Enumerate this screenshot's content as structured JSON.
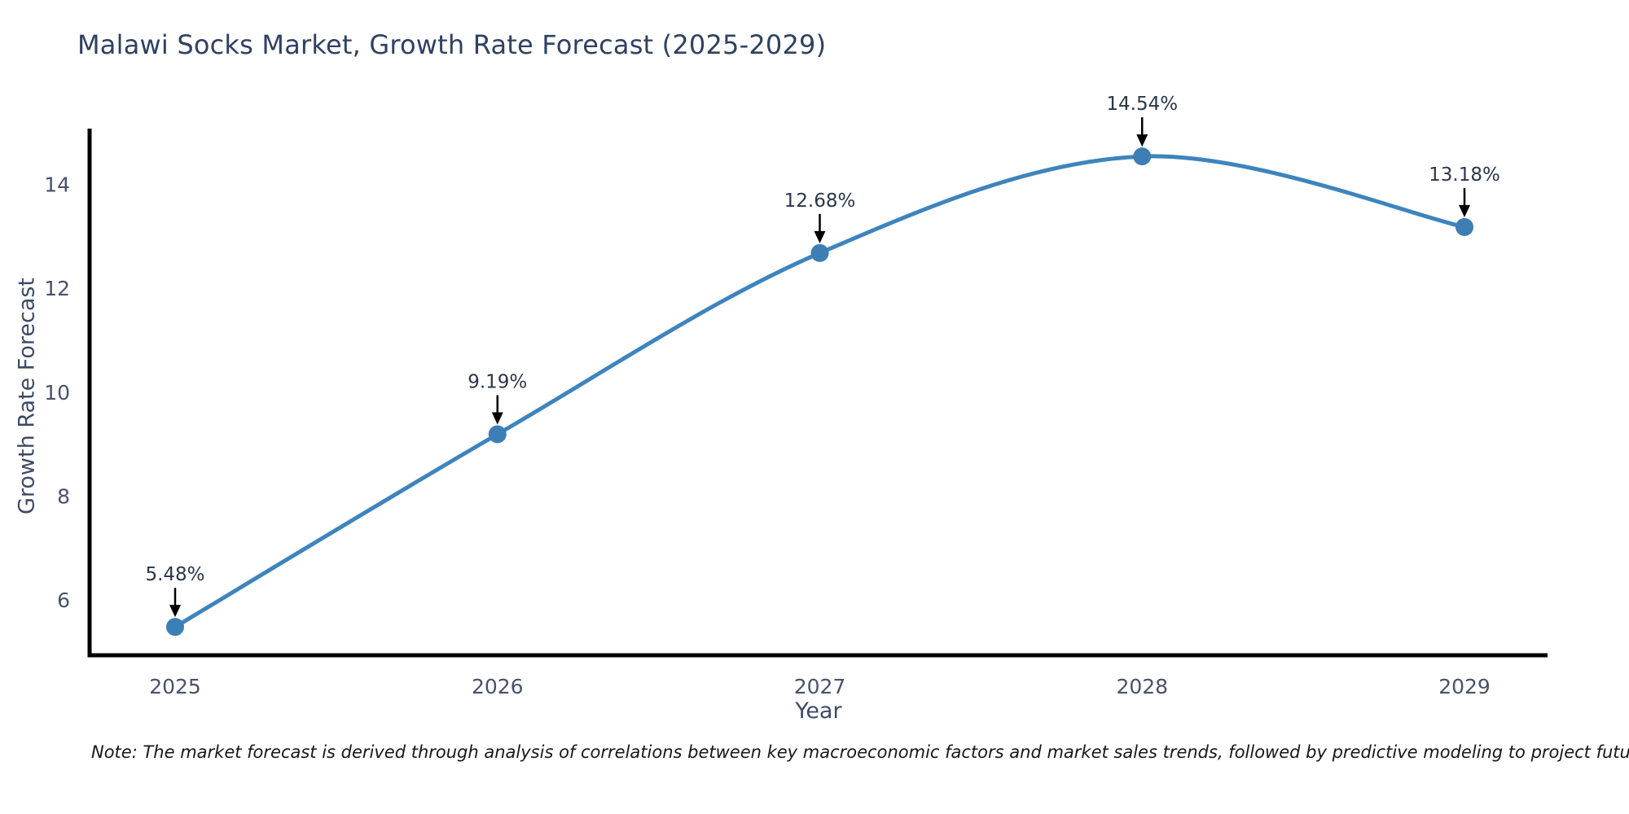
{
  "title": "Malawi Socks Market, Growth Rate Forecast (2025-2029)",
  "note": "Note: The market forecast is derived through analysis of correlations between key macroeconomic factors and market sales trends, followed by predictive modeling to project future sales",
  "chart_data": {
    "type": "line",
    "title": "Malawi Socks Market, Growth Rate Forecast (2025-2029)",
    "xlabel": "Year",
    "ylabel": "Growth Rate Forecast",
    "categories": [
      2025,
      2026,
      2027,
      2028,
      2029
    ],
    "values": [
      5.48,
      9.19,
      12.68,
      14.54,
      13.18
    ],
    "point_labels": [
      "5.48%",
      "9.19%",
      "12.68%",
      "14.54%",
      "13.18%"
    ],
    "yticks": [
      6,
      8,
      10,
      12,
      14
    ],
    "ylim": [
      4.85,
      15.1
    ],
    "curve": "spline",
    "grid": false,
    "legend": "none",
    "line_color": "#3e84bd",
    "marker_color": "#3d7fb5",
    "axis_color": "#000000",
    "annotation_arrow_color": "#000000"
  }
}
